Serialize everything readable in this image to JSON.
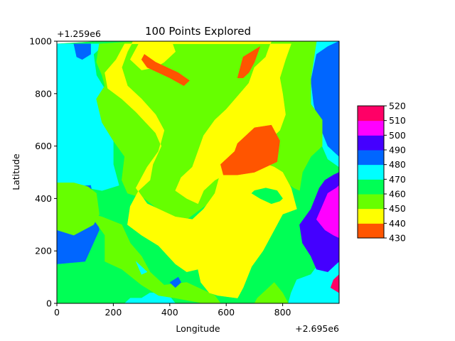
{
  "chart_data": {
    "type": "contour",
    "title": "100 Points Explored",
    "xlabel": "Longitude",
    "ylabel": "Latitude",
    "x_offset_text": "+2.695e6",
    "y_offset_text": "+1.259e6",
    "xlim": [
      0,
      1000
    ],
    "ylim": [
      0,
      1000
    ],
    "x_ticks": [
      0,
      200,
      400,
      600,
      800
    ],
    "y_ticks": [
      0,
      200,
      400,
      600,
      800,
      1000
    ],
    "x_tick_labels": [
      "0",
      "200",
      "400",
      "600",
      "800"
    ],
    "y_tick_labels": [
      "0",
      "200",
      "400",
      "600",
      "800",
      "1000"
    ],
    "colorbar": {
      "levels": [
        430,
        440,
        450,
        460,
        470,
        480,
        490,
        500,
        510,
        520
      ],
      "tick_labels": [
        "430",
        "440",
        "450",
        "460",
        "470",
        "480",
        "490",
        "500",
        "510",
        "520"
      ],
      "colors": [
        "#ff5500",
        "#ffff00",
        "#66ff00",
        "#00ff55",
        "#00ffff",
        "#0066ff",
        "#4400ff",
        "#ff00ff",
        "#ff0066"
      ]
    },
    "regions": [
      {
        "level": 3,
        "points": [
          [
            0,
            990
          ],
          [
            0,
            0
          ],
          [
            1000,
            0
          ],
          [
            1000,
            1000
          ],
          [
            160,
            1000
          ]
        ]
      },
      {
        "level": 4,
        "points": [
          [
            0,
            990
          ],
          [
            0,
            440
          ],
          [
            110,
            440
          ],
          [
            160,
            430
          ],
          [
            220,
            450
          ],
          [
            200,
            530
          ],
          [
            200,
            720
          ],
          [
            180,
            800
          ],
          [
            140,
            870
          ],
          [
            130,
            950
          ],
          [
            170,
            990
          ]
        ]
      },
      {
        "level": 4,
        "points": [
          [
            860,
            1000
          ],
          [
            1000,
            1000
          ],
          [
            1000,
            520
          ],
          [
            960,
            550
          ],
          [
            940,
            600
          ],
          [
            930,
            680
          ],
          [
            880,
            760
          ],
          [
            860,
            860
          ],
          [
            870,
            960
          ]
        ]
      },
      {
        "level": 4,
        "points": [
          [
            820,
            0
          ],
          [
            1000,
            0
          ],
          [
            1000,
            200
          ],
          [
            940,
            170
          ],
          [
            900,
            110
          ],
          [
            850,
            90
          ],
          [
            830,
            40
          ]
        ]
      },
      {
        "level": 4,
        "points": [
          [
            240,
            0
          ],
          [
            420,
            0
          ],
          [
            390,
            40
          ],
          [
            330,
            40
          ],
          [
            300,
            20
          ],
          [
            260,
            20
          ]
        ]
      },
      {
        "level": 5,
        "points": [
          [
            0,
            990
          ],
          [
            0,
            150
          ],
          [
            100,
            160
          ],
          [
            150,
            280
          ],
          [
            120,
            450
          ],
          [
            0,
            440
          ]
        ]
      },
      {
        "level": 5,
        "points": [
          [
            1000,
            1000
          ],
          [
            1000,
            560
          ],
          [
            960,
            600
          ],
          [
            930,
            680
          ],
          [
            910,
            760
          ],
          [
            900,
            850
          ],
          [
            920,
            950
          ],
          [
            960,
            980
          ]
        ]
      },
      {
        "level": 2,
        "points": [
          [
            0,
            320
          ],
          [
            0,
            280
          ],
          [
            60,
            260
          ],
          [
            130,
            300
          ],
          [
            150,
            340
          ],
          [
            140,
            420
          ],
          [
            110,
            445
          ],
          [
            60,
            460
          ],
          [
            0,
            460
          ]
        ]
      },
      {
        "level": 2,
        "points": [
          [
            300,
            1000
          ],
          [
            150,
            990
          ],
          [
            140,
            920
          ],
          [
            160,
            870
          ],
          [
            170,
            830
          ],
          [
            140,
            780
          ],
          [
            160,
            690
          ],
          [
            200,
            620
          ],
          [
            240,
            560
          ],
          [
            230,
            470
          ],
          [
            250,
            420
          ],
          [
            310,
            400
          ],
          [
            380,
            340
          ],
          [
            460,
            320
          ],
          [
            560,
            400
          ],
          [
            590,
            470
          ],
          [
            640,
            520
          ],
          [
            730,
            540
          ],
          [
            800,
            470
          ],
          [
            840,
            440
          ],
          [
            860,
            430
          ],
          [
            870,
            500
          ],
          [
            900,
            560
          ],
          [
            940,
            600
          ],
          [
            940,
            700
          ],
          [
            900,
            760
          ],
          [
            900,
            860
          ],
          [
            920,
            1000
          ]
        ]
      },
      {
        "level": 2,
        "points": [
          [
            0,
            320
          ],
          [
            60,
            290
          ],
          [
            130,
            320
          ],
          [
            170,
            260
          ],
          [
            170,
            160
          ],
          [
            230,
            130
          ],
          [
            300,
            70
          ],
          [
            360,
            30
          ],
          [
            420,
            20
          ],
          [
            520,
            0
          ],
          [
            580,
            0
          ],
          [
            560,
            30
          ],
          [
            460,
            80
          ],
          [
            380,
            70
          ],
          [
            330,
            120
          ],
          [
            300,
            180
          ],
          [
            260,
            230
          ],
          [
            230,
            300
          ],
          [
            160,
            330
          ],
          [
            90,
            350
          ],
          [
            0,
            340
          ]
        ]
      },
      {
        "level": 2,
        "points": [
          [
            700,
            0
          ],
          [
            820,
            0
          ],
          [
            800,
            40
          ],
          [
            770,
            80
          ],
          [
            740,
            50
          ],
          [
            710,
            20
          ]
        ]
      },
      {
        "level": 1,
        "points": [
          [
            240,
            990
          ],
          [
            210,
            930
          ],
          [
            170,
            880
          ],
          [
            180,
            820
          ],
          [
            230,
            780
          ],
          [
            280,
            730
          ],
          [
            350,
            650
          ],
          [
            370,
            600
          ],
          [
            340,
            530
          ],
          [
            330,
            470
          ],
          [
            290,
            430
          ],
          [
            260,
            370
          ],
          [
            250,
            300
          ],
          [
            300,
            260
          ],
          [
            360,
            220
          ],
          [
            420,
            150
          ],
          [
            460,
            120
          ],
          [
            500,
            130
          ],
          [
            510,
            80
          ],
          [
            540,
            40
          ],
          [
            570,
            30
          ],
          [
            640,
            20
          ],
          [
            660,
            60
          ],
          [
            690,
            140
          ],
          [
            730,
            200
          ],
          [
            770,
            280
          ],
          [
            800,
            340
          ],
          [
            850,
            360
          ],
          [
            830,
            440
          ],
          [
            800,
            500
          ],
          [
            770,
            520
          ],
          [
            720,
            540
          ],
          [
            680,
            560
          ],
          [
            640,
            520
          ],
          [
            580,
            500
          ],
          [
            560,
            420
          ],
          [
            520,
            360
          ],
          [
            480,
            320
          ],
          [
            420,
            330
          ],
          [
            380,
            350
          ],
          [
            320,
            380
          ],
          [
            280,
            440
          ],
          [
            320,
            520
          ],
          [
            360,
            580
          ],
          [
            380,
            660
          ],
          [
            350,
            720
          ],
          [
            300,
            780
          ],
          [
            250,
            830
          ],
          [
            230,
            900
          ],
          [
            250,
            960
          ],
          [
            270,
            1000
          ],
          [
            760,
            1000
          ],
          [
            740,
            940
          ],
          [
            700,
            900
          ],
          [
            680,
            840
          ],
          [
            640,
            790
          ],
          [
            600,
            740
          ],
          [
            560,
            700
          ],
          [
            520,
            640
          ],
          [
            500,
            580
          ],
          [
            480,
            520
          ],
          [
            440,
            480
          ],
          [
            420,
            430
          ],
          [
            460,
            400
          ],
          [
            500,
            380
          ],
          [
            520,
            430
          ],
          [
            560,
            470
          ],
          [
            610,
            500
          ],
          [
            660,
            540
          ],
          [
            700,
            580
          ],
          [
            750,
            620
          ],
          [
            790,
            660
          ],
          [
            810,
            720
          ],
          [
            800,
            800
          ],
          [
            790,
            860
          ],
          [
            810,
            930
          ],
          [
            830,
            990
          ]
        ]
      },
      {
        "level": 1,
        "points": [
          [
            290,
            990
          ],
          [
            410,
            990
          ],
          [
            420,
            960
          ],
          [
            380,
            920
          ],
          [
            350,
            900
          ],
          [
            300,
            890
          ],
          [
            260,
            930
          ]
        ]
      },
      {
        "level": 0,
        "points": [
          [
            300,
            930
          ],
          [
            310,
            950
          ],
          [
            350,
            920
          ],
          [
            390,
            900
          ],
          [
            430,
            880
          ],
          [
            470,
            850
          ],
          [
            450,
            830
          ],
          [
            400,
            860
          ],
          [
            360,
            880
          ],
          [
            320,
            900
          ]
        ]
      },
      {
        "level": 0,
        "points": [
          [
            640,
            860
          ],
          [
            660,
            940
          ],
          [
            720,
            980
          ],
          [
            700,
            920
          ],
          [
            680,
            880
          ],
          [
            660,
            860
          ]
        ]
      },
      {
        "level": 0,
        "points": [
          [
            590,
            490
          ],
          [
            580,
            530
          ],
          [
            630,
            580
          ],
          [
            640,
            610
          ],
          [
            700,
            670
          ],
          [
            760,
            680
          ],
          [
            790,
            620
          ],
          [
            780,
            540
          ],
          [
            700,
            500
          ],
          [
            640,
            490
          ]
        ]
      },
      {
        "level": 3,
        "points": [
          [
            690,
            420
          ],
          [
            720,
            400
          ],
          [
            760,
            380
          ],
          [
            790,
            390
          ],
          [
            800,
            400
          ],
          [
            780,
            430
          ],
          [
            740,
            440
          ],
          [
            700,
            430
          ]
        ]
      },
      {
        "level": 6,
        "points": [
          [
            860,
            300
          ],
          [
            900,
            360
          ],
          [
            930,
            440
          ],
          [
            950,
            470
          ],
          [
            980,
            490
          ],
          [
            1000,
            500
          ],
          [
            1000,
            160
          ],
          [
            960,
            120
          ],
          [
            920,
            130
          ],
          [
            900,
            180
          ],
          [
            870,
            230
          ]
        ]
      },
      {
        "level": 7,
        "points": [
          [
            920,
            320
          ],
          [
            940,
            370
          ],
          [
            960,
            420
          ],
          [
            990,
            440
          ],
          [
            1000,
            450
          ],
          [
            1000,
            250
          ],
          [
            980,
            260
          ],
          [
            950,
            280
          ]
        ]
      },
      {
        "level": 8,
        "points": [
          [
            970,
            60
          ],
          [
            1000,
            40
          ],
          [
            1000,
            110
          ],
          [
            980,
            90
          ]
        ]
      },
      {
        "level": 5,
        "points": [
          [
            60,
            990
          ],
          [
            120,
            990
          ],
          [
            120,
            950
          ],
          [
            90,
            930
          ],
          [
            70,
            940
          ]
        ]
      },
      {
        "level": 4,
        "points": [
          [
            280,
            160
          ],
          [
            300,
            140
          ],
          [
            320,
            120
          ],
          [
            300,
            110
          ]
        ]
      },
      {
        "level": 5,
        "points": [
          [
            400,
            80
          ],
          [
            420,
            60
          ],
          [
            440,
            80
          ],
          [
            430,
            100
          ]
        ]
      }
    ]
  }
}
